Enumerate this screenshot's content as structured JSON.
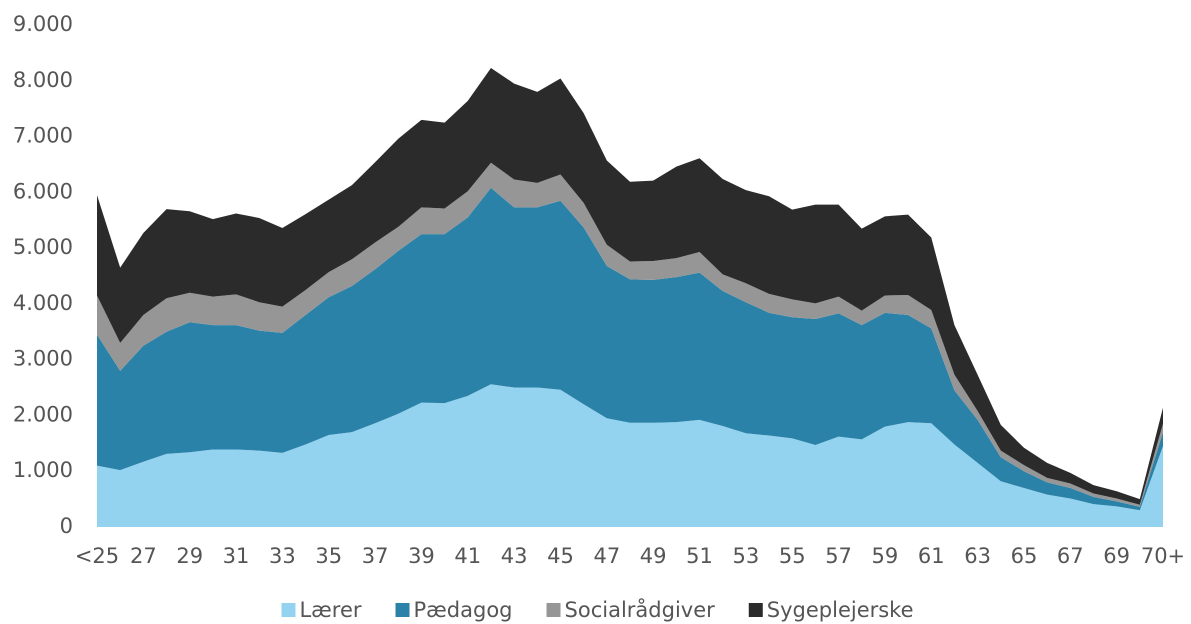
{
  "chart_data": {
    "type": "stacked_area",
    "categories": [
      "<25",
      null,
      "27",
      null,
      "29",
      null,
      "31",
      null,
      "33",
      null,
      "35",
      null,
      "37",
      null,
      "39",
      null,
      "41",
      null,
      "43",
      null,
      "45",
      null,
      "47",
      null,
      "49",
      null,
      "51",
      null,
      "53",
      null,
      "55",
      null,
      "57",
      null,
      "59",
      null,
      "61",
      null,
      "63",
      null,
      "65",
      null,
      "67",
      null,
      "69",
      null,
      "70+"
    ],
    "series": [
      {
        "name": "Lærer",
        "color": "#93d3f0",
        "values": [
          1100,
          1020,
          1170,
          1310,
          1340,
          1390,
          1390,
          1370,
          1330,
          1480,
          1650,
          1700,
          1860,
          2030,
          2230,
          2220,
          2350,
          2560,
          2500,
          2500,
          2460,
          2200,
          1950,
          1870,
          1870,
          1880,
          1920,
          1810,
          1680,
          1640,
          1590,
          1470,
          1620,
          1570,
          1800,
          1880,
          1860,
          1480,
          1150,
          820,
          700,
          580,
          510,
          410,
          370,
          300,
          1450
        ]
      },
      {
        "name": "Pædagog",
        "color": "#2b82a8",
        "values": [
          2350,
          1780,
          2080,
          2190,
          2330,
          2230,
          2230,
          2150,
          2150,
          2320,
          2470,
          2620,
          2760,
          2920,
          3020,
          3030,
          3200,
          3520,
          3230,
          3230,
          3390,
          3170,
          2730,
          2570,
          2560,
          2600,
          2640,
          2420,
          2350,
          2200,
          2170,
          2260,
          2210,
          2050,
          2040,
          1920,
          1700,
          970,
          770,
          430,
          300,
          220,
          190,
          130,
          90,
          60,
          250
        ]
      },
      {
        "name": "Socialrådgiver",
        "color": "#969696",
        "values": [
          700,
          500,
          550,
          600,
          530,
          510,
          550,
          510,
          470,
          450,
          450,
          480,
          480,
          430,
          480,
          460,
          470,
          450,
          500,
          440,
          470,
          440,
          380,
          320,
          340,
          340,
          370,
          300,
          340,
          340,
          320,
          280,
          300,
          260,
          310,
          360,
          330,
          280,
          160,
          120,
          110,
          80,
          80,
          60,
          50,
          40,
          150
        ]
      },
      {
        "name": "Sygeplejerske",
        "color": "#2b2b2b",
        "values": [
          1800,
          1350,
          1470,
          1600,
          1460,
          1390,
          1450,
          1510,
          1410,
          1360,
          1300,
          1330,
          1440,
          1580,
          1570,
          1540,
          1620,
          1700,
          1720,
          1630,
          1720,
          1610,
          1510,
          1430,
          1440,
          1640,
          1680,
          1710,
          1670,
          1750,
          1610,
          1770,
          1650,
          1470,
          1420,
          1440,
          1300,
          890,
          650,
          460,
          310,
          270,
          190,
          150,
          130,
          100,
          290
        ]
      }
    ],
    "ylim": [
      0,
      9000
    ],
    "yticks": [
      0,
      {
        "value": 1000,
        "label": "1.000"
      },
      {
        "value": 2000,
        "label": "2.000"
      },
      {
        "value": 3000,
        "label": "3.000"
      },
      {
        "value": 4000,
        "label": "4.000"
      },
      {
        "value": 5000,
        "label": "5.000"
      },
      {
        "value": 6000,
        "label": "6.000"
      },
      {
        "value": 7000,
        "label": "7.000"
      },
      {
        "value": 8000,
        "label": "8.000"
      },
      {
        "value": 9000,
        "label": "9.000"
      }
    ],
    "legend": "bottom"
  }
}
